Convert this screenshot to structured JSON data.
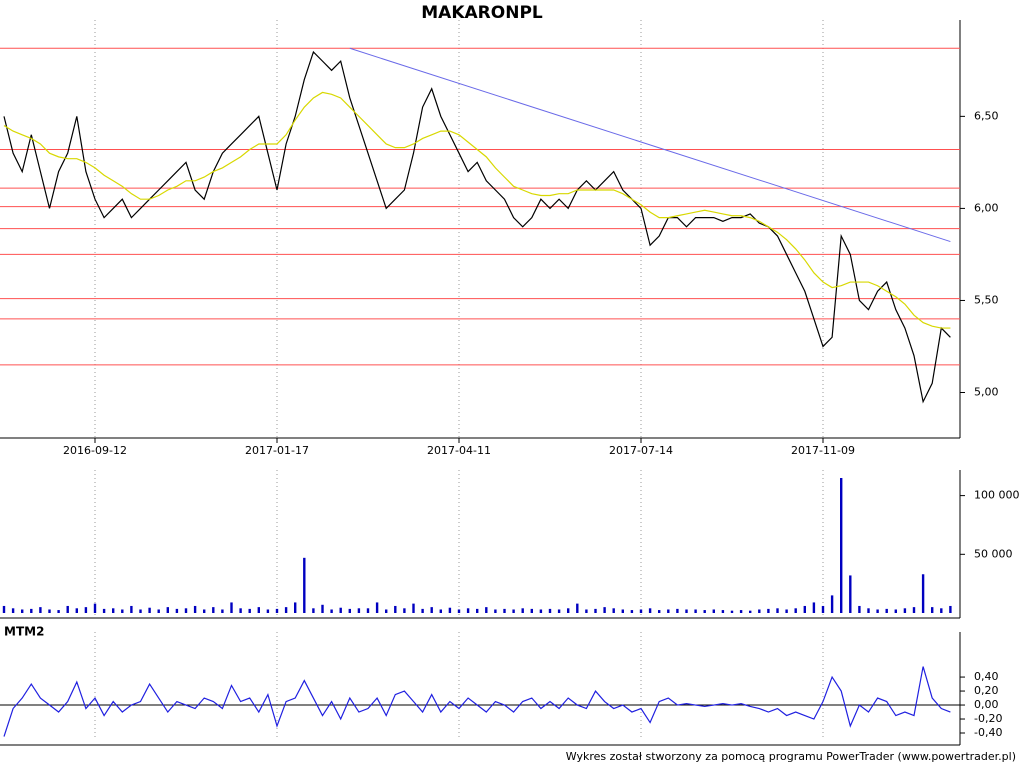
{
  "chart_data": [
    {
      "type": "line",
      "title": "MAKARONPL",
      "categories": [
        null,
        null,
        null,
        null,
        null,
        null,
        null,
        null,
        null,
        null,
        "2016-09-12",
        null,
        null,
        null,
        null,
        null,
        null,
        null,
        null,
        null,
        null,
        null,
        null,
        null,
        null,
        null,
        null,
        null,
        null,
        null,
        "2017-01-17",
        null,
        null,
        null,
        null,
        null,
        null,
        null,
        null,
        null,
        null,
        null,
        null,
        null,
        null,
        null,
        null,
        null,
        null,
        null,
        "2017-04-11",
        null,
        null,
        null,
        null,
        null,
        null,
        null,
        null,
        null,
        null,
        null,
        null,
        null,
        null,
        null,
        null,
        null,
        null,
        null,
        "2017-07-14",
        null,
        null,
        null,
        null,
        null,
        null,
        null,
        null,
        null,
        null,
        null,
        null,
        null,
        null,
        null,
        null,
        null,
        null,
        null,
        "2017-11-09",
        null,
        null,
        null,
        null,
        null,
        null,
        null,
        null,
        null,
        null,
        null,
        null,
        null,
        null
      ],
      "series": [
        {
          "color": "#000000",
          "values": [
            6.5,
            6.3,
            6.2,
            6.4,
            6.2,
            6.0,
            6.2,
            6.3,
            6.5,
            6.2,
            6.05,
            5.95,
            6.0,
            6.05,
            5.95,
            6.0,
            6.05,
            6.1,
            6.15,
            6.2,
            6.25,
            6.1,
            6.05,
            6.2,
            6.3,
            6.35,
            6.4,
            6.45,
            6.5,
            6.3,
            6.1,
            6.35,
            6.5,
            6.7,
            6.85,
            6.8,
            6.75,
            6.8,
            6.6,
            6.45,
            6.3,
            6.15,
            6.0,
            6.05,
            6.1,
            6.3,
            6.55,
            6.65,
            6.5,
            6.4,
            6.3,
            6.2,
            6.25,
            6.15,
            6.1,
            6.05,
            5.95,
            5.9,
            5.95,
            6.05,
            6.0,
            6.05,
            6.0,
            6.1,
            6.15,
            6.1,
            6.15,
            6.2,
            6.1,
            6.05,
            6.0,
            5.8,
            5.85,
            5.95,
            5.95,
            5.9,
            5.95,
            5.95,
            5.95,
            5.93,
            5.95,
            5.95,
            5.97,
            5.92,
            5.9,
            5.85,
            5.75,
            5.65,
            5.55,
            5.4,
            5.25,
            5.3,
            5.85,
            5.75,
            5.5,
            5.45,
            5.55,
            5.6,
            5.45,
            5.35,
            5.2,
            4.95,
            5.05,
            5.35,
            5.3
          ]
        },
        {
          "color": "#d8d800",
          "values": [
            6.45,
            6.42,
            6.4,
            6.38,
            6.35,
            6.3,
            6.28,
            6.27,
            6.27,
            6.25,
            6.22,
            6.18,
            6.15,
            6.12,
            6.08,
            6.05,
            6.05,
            6.07,
            6.1,
            6.12,
            6.15,
            6.15,
            6.17,
            6.2,
            6.22,
            6.25,
            6.28,
            6.32,
            6.35,
            6.35,
            6.35,
            6.4,
            6.48,
            6.55,
            6.6,
            6.63,
            6.62,
            6.6,
            6.55,
            6.5,
            6.45,
            6.4,
            6.35,
            6.33,
            6.33,
            6.35,
            6.38,
            6.4,
            6.42,
            6.42,
            6.4,
            6.36,
            6.32,
            6.28,
            6.22,
            6.17,
            6.12,
            6.1,
            6.08,
            6.07,
            6.07,
            6.08,
            6.08,
            6.1,
            6.1,
            6.1,
            6.1,
            6.1,
            6.08,
            6.05,
            6.02,
            5.98,
            5.95,
            5.95,
            5.96,
            5.97,
            5.98,
            5.99,
            5.98,
            5.97,
            5.96,
            5.96,
            5.95,
            5.93,
            5.9,
            5.87,
            5.83,
            5.78,
            5.72,
            5.65,
            5.6,
            5.57,
            5.58,
            5.6,
            5.6,
            5.6,
            5.58,
            5.55,
            5.52,
            5.48,
            5.42,
            5.38,
            5.36,
            5.35,
            5.35
          ]
        }
      ],
      "support_lines": {
        "color": "#ff5050",
        "values": [
          6.87,
          6.32,
          6.11,
          6.01,
          5.89,
          5.75,
          5.51,
          5.4,
          5.15
        ]
      },
      "trendline": {
        "color": "#6a6ae8",
        "x": [
          38,
          104
        ],
        "values": [
          6.87,
          5.82
        ]
      },
      "ylim": [
        4.78,
        6.98
      ],
      "yticks": [
        {
          "value": 5,
          "label": "5,00"
        },
        {
          "value": 5.5,
          "label": "5,50"
        },
        {
          "value": 6,
          "label": "6,00"
        },
        {
          "value": 6.5,
          "label": "6,50"
        }
      ]
    },
    {
      "type": "bar",
      "color": "#0000c0",
      "values": [
        6000,
        4000,
        3000,
        3500,
        5000,
        3000,
        2500,
        6000,
        4000,
        5000,
        8000,
        3500,
        4000,
        3000,
        6000,
        3000,
        4500,
        3000,
        5000,
        3500,
        4000,
        6000,
        3000,
        5000,
        3000,
        9000,
        4000,
        3500,
        5000,
        3000,
        3500,
        5000,
        9000,
        47000,
        4000,
        7000,
        3000,
        4500,
        3500,
        4000,
        4000,
        9000,
        3000,
        6000,
        4000,
        8000,
        3500,
        5000,
        3000,
        4500,
        3000,
        4000,
        3500,
        5000,
        3000,
        3500,
        3000,
        4000,
        3500,
        3000,
        3500,
        3000,
        4000,
        8000,
        3000,
        3500,
        5000,
        4000,
        3000,
        2500,
        3000,
        4000,
        2500,
        3000,
        3500,
        3000,
        3000,
        2500,
        3000,
        2500,
        2000,
        2500,
        2000,
        3000,
        3500,
        4000,
        3000,
        4000,
        6000,
        9000,
        6000,
        15000,
        115000,
        32000,
        6000,
        4000,
        3000,
        3500,
        3000,
        4000,
        5000,
        33000,
        5000,
        4000,
        6000
      ],
      "ylim": [
        0,
        115000
      ],
      "yticks": [
        {
          "value": 50000,
          "label": "50 000"
        },
        {
          "value": 100000,
          "label": "100 000"
        }
      ]
    },
    {
      "type": "line",
      "title": "MTM2",
      "series": [
        {
          "color": "#2020e0",
          "values": [
            -0.45,
            -0.05,
            0.1,
            0.3,
            0.1,
            0.0,
            -0.1,
            0.05,
            0.33,
            -0.05,
            0.1,
            -0.15,
            0.05,
            -0.1,
            0.0,
            0.05,
            0.3,
            0.1,
            -0.1,
            0.05,
            0.0,
            -0.05,
            0.1,
            0.05,
            -0.05,
            0.28,
            0.05,
            0.1,
            -0.1,
            0.15,
            -0.3,
            0.05,
            0.1,
            0.35,
            0.1,
            -0.15,
            0.05,
            -0.2,
            0.1,
            -0.1,
            -0.05,
            0.1,
            -0.15,
            0.15,
            0.2,
            0.05,
            -0.1,
            0.15,
            -0.1,
            0.05,
            -0.05,
            0.1,
            0.0,
            -0.1,
            0.05,
            0.0,
            -0.1,
            0.05,
            0.1,
            -0.05,
            0.05,
            -0.05,
            0.1,
            0.0,
            -0.05,
            0.2,
            0.05,
            -0.05,
            0.0,
            -0.1,
            -0.05,
            -0.25,
            0.05,
            0.1,
            0.0,
            0.02,
            0.0,
            -0.02,
            0.0,
            0.02,
            0.0,
            0.02,
            -0.02,
            -0.05,
            -0.1,
            -0.05,
            -0.15,
            -0.1,
            -0.15,
            -0.2,
            0.05,
            0.4,
            0.2,
            -0.3,
            0.0,
            -0.1,
            0.1,
            0.05,
            -0.15,
            -0.1,
            -0.15,
            0.55,
            0.1,
            -0.05,
            -0.1
          ]
        }
      ],
      "ylim": [
        -0.5,
        0.93
      ],
      "yticks": [
        {
          "value": -0.4,
          "label": "-0,40"
        },
        {
          "value": -0.2,
          "label": "-0,20"
        },
        {
          "value": 0,
          "label": "0,00"
        },
        {
          "value": 0.2,
          "label": "0,20"
        },
        {
          "value": 0.4,
          "label": "0,40"
        }
      ]
    }
  ],
  "footer": "Wykres został stworzony za pomocą programu PowerTrader (www.powertrader.pl)"
}
